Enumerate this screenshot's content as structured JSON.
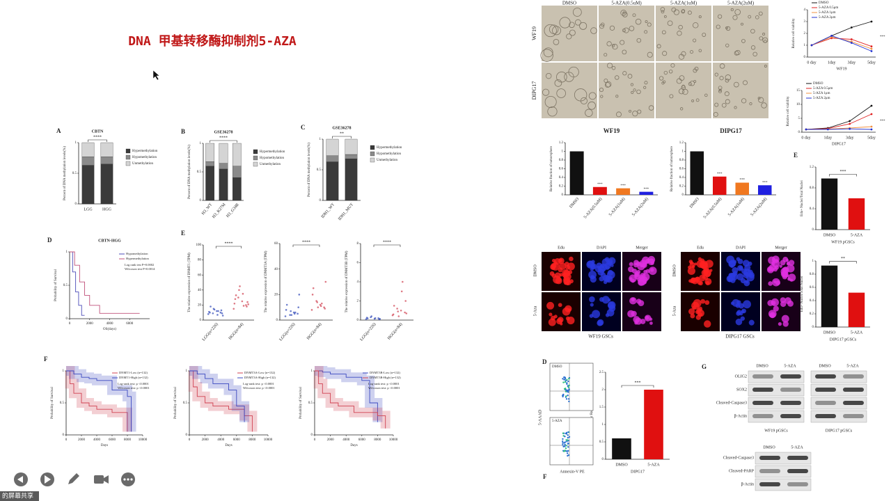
{
  "slide": {
    "title": "DNA 甲基转移酶抑制剂5-AZA",
    "footer": "的屏幕共享"
  },
  "chart_data": [
    {
      "type": "stacked_bar",
      "panel": "A",
      "title": "CBTN",
      "annotation": "****",
      "y_label": "Percent of DNA methylation levels(%)",
      "categories": [
        "LGG",
        "HGG"
      ],
      "ylim": [
        0,
        1
      ],
      "yticks": [
        0,
        0.5,
        1
      ],
      "series": [
        {
          "name": "Hypermethylation",
          "color": "#3a3a3a",
          "values": [
            0.63,
            0.65
          ]
        },
        {
          "name": "Hypomethylation",
          "color": "#8a8a8a",
          "values": [
            0.14,
            0.12
          ]
        },
        {
          "name": "Unmethylation",
          "color": "#d4d4d4",
          "values": [
            0.23,
            0.23
          ]
        }
      ]
    },
    {
      "type": "stacked_bar",
      "panel": "B",
      "title": "GSE36278",
      "annotation": "****",
      "y_label": "Percent of DNA methylation levels(%)",
      "categories": [
        "H3_WT",
        "H3_K27M",
        "H3_G34R"
      ],
      "ylim": [
        0,
        1
      ],
      "yticks": [
        0,
        0.5,
        1
      ],
      "series": [
        {
          "name": "Hypermethylation",
          "color": "#3a3a3a",
          "values": [
            0.6,
            0.55,
            0.4
          ]
        },
        {
          "name": "Hypomethylation",
          "color": "#8a8a8a",
          "values": [
            0.08,
            0.1,
            0.2
          ]
        },
        {
          "name": "Unmethylation",
          "color": "#d4d4d4",
          "values": [
            0.32,
            0.35,
            0.4
          ]
        }
      ]
    },
    {
      "type": "stacked_bar",
      "panel": "C",
      "title": "GSE36278",
      "annotation": "**",
      "y_label": "Percent of DNA methylation levels(%)",
      "categories": [
        "IDH1_WT",
        "IDH1_MUT"
      ],
      "ylim": [
        0,
        1
      ],
      "yticks": [
        0,
        0.5,
        1
      ],
      "series": [
        {
          "name": "Hypermethylation",
          "color": "#3a3a3a",
          "values": [
            0.63,
            0.68
          ]
        },
        {
          "name": "Hypomethylation",
          "color": "#8a8a8a",
          "values": [
            0.1,
            0.07
          ]
        },
        {
          "name": "Unmethylation",
          "color": "#d4d4d4",
          "values": [
            0.27,
            0.25
          ]
        }
      ]
    },
    {
      "type": "step",
      "panel": "D",
      "title": "CBTN-HGG",
      "x_label": "OS(days)",
      "y_label": "Probability of Survival",
      "xlim": [
        0,
        8000
      ],
      "xticks": [
        0,
        2000,
        4000,
        6000
      ],
      "ylim": [
        0,
        1
      ],
      "yticks": [
        0,
        0.5,
        1
      ],
      "annotations": [
        "Log rank test P=0.0002",
        "Wilcoxon test P=0.0014"
      ],
      "series": [
        {
          "name": "Hypomethylation",
          "color": "#4a4ab8",
          "x": [
            0,
            300,
            600,
            900,
            1200,
            1500
          ],
          "values": [
            1,
            0.7,
            0.4,
            0.2,
            0.05,
            0.05
          ]
        },
        {
          "name": "Hypermethylation",
          "color": "#c0507a",
          "x": [
            0,
            500,
            1000,
            1500,
            2000,
            3000,
            7000
          ],
          "values": [
            1,
            0.8,
            0.55,
            0.35,
            0.2,
            0.08,
            0.08
          ]
        }
      ]
    },
    {
      "type": "dot",
      "panel": "E",
      "annotation": "****",
      "y_label": "The relative expression of DNMT1 (TPM)",
      "categories": [
        "LGG(n=226)",
        "HGG(n=84)"
      ],
      "colors": [
        "#3048b8",
        "#d04050"
      ],
      "ylim": [
        0,
        100
      ],
      "yticks": [
        0,
        20,
        40,
        60,
        80,
        100
      ],
      "points": [
        [
          8,
          10,
          12,
          9,
          11,
          13,
          7,
          15,
          10,
          9,
          12,
          14,
          18,
          6
        ],
        [
          15,
          20,
          25,
          30,
          22,
          18,
          35,
          40,
          28,
          24,
          19,
          45,
          33,
          21
        ]
      ]
    },
    {
      "type": "dot",
      "annotation": "****",
      "y_label": "The relative expression of DNMT3A (TPM)",
      "categories": [
        "LGG(n=226)",
        "HGG(n=84)"
      ],
      "colors": [
        "#3048b8",
        "#d04050"
      ],
      "ylim": [
        0,
        60
      ],
      "yticks": [
        0,
        20,
        40,
        60
      ],
      "points": [
        [
          3,
          5,
          6,
          4,
          8,
          10,
          5,
          7,
          12,
          20,
          6,
          4
        ],
        [
          8,
          10,
          12,
          15,
          20,
          9,
          11,
          14,
          25,
          30,
          13,
          10
        ]
      ]
    },
    {
      "type": "dot",
      "annotation": "****",
      "y_label": "The relative expression of DNMT3B (TPM)",
      "categories": [
        "LGG(n=226)",
        "HGG(n=84)"
      ],
      "colors": [
        "#3048b8",
        "#d04050"
      ],
      "ylim": [
        0,
        8
      ],
      "yticks": [
        0,
        2,
        4,
        6,
        8
      ],
      "points": [
        [
          0.1,
          0.2,
          0.15,
          0.3,
          0.25,
          0.1,
          0.2,
          0.4,
          0.18,
          0.12
        ],
        [
          0.5,
          0.8,
          1,
          1.2,
          0.6,
          2,
          3,
          0.9,
          1.5,
          0.7,
          4,
          0.4
        ]
      ]
    },
    {
      "type": "step",
      "panel": "F",
      "confidence_band": true,
      "x_label": "Days",
      "y_label": "Probability of Survival",
      "xlim": [
        0,
        10000
      ],
      "xticks": [
        0,
        2000,
        4000,
        6000,
        8000,
        10000
      ],
      "ylim": [
        0,
        1
      ],
      "yticks": [
        0,
        0.5,
        1
      ],
      "annotations": [
        "Log-rank test: p <0.0001",
        "Wilcoxon test: p <0.0001"
      ],
      "series": [
        {
          "name": "DNMT1-Low (n=132)",
          "color": "#d04050",
          "x": [
            0,
            500,
            1000,
            2000,
            3000,
            4000,
            6000,
            8000
          ],
          "values": [
            1,
            0.8,
            0.65,
            0.5,
            0.45,
            0.4,
            0.35,
            0.05
          ]
        },
        {
          "name": "DNMT1-High (n=132)",
          "color": "#3a48c0",
          "x": [
            0,
            1000,
            2000,
            3000,
            4000,
            6000,
            8000,
            8500
          ],
          "values": [
            1,
            0.95,
            0.9,
            0.88,
            0.85,
            0.7,
            0.6,
            0.05
          ]
        }
      ]
    },
    {
      "type": "step",
      "confidence_band": true,
      "x_label": "Days",
      "y_label": "Probability of Survival",
      "xlim": [
        0,
        10000
      ],
      "xticks": [
        0,
        2000,
        4000,
        6000,
        8000,
        10000
      ],
      "ylim": [
        0,
        1
      ],
      "yticks": [
        0,
        0.5,
        1
      ],
      "annotations": [
        "Log-rank test: p <0.0001",
        "Wilcoxon test: p <0.0001"
      ],
      "series": [
        {
          "name": "DNMT3A-Low (n=132)",
          "color": "#d04050",
          "x": [
            0,
            500,
            1000,
            2000,
            3000,
            5000,
            7000,
            8000
          ],
          "values": [
            1,
            0.75,
            0.6,
            0.5,
            0.45,
            0.4,
            0.3,
            0.05
          ]
        },
        {
          "name": "DNMT3A-High (n=132)",
          "color": "#3a48c0",
          "x": [
            0,
            1000,
            2000,
            3000,
            5000,
            6000,
            7000
          ],
          "values": [
            1,
            0.95,
            0.88,
            0.8,
            0.7,
            0.45,
            0.2
          ]
        }
      ]
    },
    {
      "type": "step",
      "confidence_band": true,
      "x_label": "Days",
      "y_label": "Probability of Survival",
      "xlim": [
        0,
        10000
      ],
      "xticks": [
        0,
        2000,
        4000,
        6000,
        8000,
        10000
      ],
      "ylim": [
        0,
        1
      ],
      "yticks": [
        0,
        0.5,
        1
      ],
      "annotations": [
        "Log-rank test: p <0.0001",
        "Wilcoxon test: p <0.0001"
      ],
      "series": [
        {
          "name": "DNMT3B-Low (n=132)",
          "color": "#3a48c0",
          "x": [
            0,
            1000,
            2000,
            4000,
            6000,
            7000,
            8000
          ],
          "values": [
            1,
            0.98,
            0.95,
            0.9,
            0.85,
            0.5,
            0.2
          ]
        },
        {
          "name": "DNMT3B-High (n=132)",
          "color": "#d04050",
          "x": [
            0,
            500,
            1000,
            2000,
            3000,
            5000,
            8000,
            9000
          ],
          "values": [
            1,
            0.8,
            0.65,
            0.5,
            0.45,
            0.35,
            0.3,
            0.1
          ]
        }
      ]
    },
    {
      "type": "bar",
      "title": "WF19",
      "y_label": "Relative fraction of tumorsphere",
      "categories": [
        "DMSO",
        "5-AZA(0.5uM)",
        "5-AZA(1uM)",
        "5-AZA(2uM)"
      ],
      "colors": [
        "#111111",
        "#e01010",
        "#f07820",
        "#2020e0"
      ],
      "values": [
        1,
        0.18,
        0.15,
        0.07
      ],
      "annotations": [
        null,
        "***",
        "***",
        "***"
      ],
      "ylim": [
        0,
        1.2
      ],
      "yticks": [
        0,
        0.2,
        0.4,
        0.6,
        0.8,
        1,
        1.2
      ]
    },
    {
      "type": "bar",
      "title": "DIPG17",
      "y_label": "Relative fraction of tumorsphere",
      "categories": [
        "DMSO",
        "5-AZA(0.5uM)",
        "5-AZA(1uM)",
        "5-AZA(2uM)"
      ],
      "colors": [
        "#111111",
        "#e01010",
        "#f07820",
        "#2020e0"
      ],
      "values": [
        1,
        0.42,
        0.28,
        0.22
      ],
      "annotations": [
        null,
        "***",
        "***",
        "***"
      ],
      "ylim": [
        0,
        1.2
      ],
      "yticks": [
        0,
        0.2,
        0.4,
        0.6,
        0.8,
        1,
        1.2
      ]
    },
    {
      "type": "line",
      "panel": "C",
      "annotation": "***",
      "x_label": "WF19",
      "y_label": "Relative cell viability",
      "categories": [
        "0 day",
        "1day",
        "3day",
        "5day"
      ],
      "ylim": [
        0,
        4
      ],
      "yticks": [
        0,
        1,
        2,
        3,
        4
      ],
      "series": [
        {
          "name": "DMSO",
          "color": "#111111",
          "values": [
            1,
            1.8,
            2.5,
            3
          ]
        },
        {
          "name": "5-AZA 0.5μm",
          "color": "#e02020",
          "values": [
            1,
            1.6,
            1.5,
            0.9
          ]
        },
        {
          "name": "5-AZA 1μm",
          "color": "#f09040",
          "values": [
            1,
            1.7,
            1.3,
            0.7
          ]
        },
        {
          "name": "5-AZA 2μm",
          "color": "#2030d0",
          "values": [
            1,
            1.8,
            1.2,
            0.5
          ]
        }
      ]
    },
    {
      "type": "line",
      "annotation": "***",
      "x_label": "DIPG17",
      "y_label": "Relative cell viability",
      "categories": [
        "0 day",
        "1day",
        "3day",
        "5day"
      ],
      "ylim": [
        0,
        15
      ],
      "yticks": [
        0,
        5,
        10,
        15
      ],
      "series": [
        {
          "name": "DMSO",
          "color": "#111111",
          "values": [
            1,
            1.5,
            4,
            9.5
          ]
        },
        {
          "name": "5-AZA 0.5μm",
          "color": "#e02020",
          "values": [
            1,
            1.3,
            3,
            6.5
          ]
        },
        {
          "name": "5-AZA 1μm",
          "color": "#f09040",
          "values": [
            1,
            1.1,
            1.5,
            2
          ]
        },
        {
          "name": "5-AZA 2μm",
          "color": "#2030d0",
          "values": [
            1,
            1,
            1.2,
            1
          ]
        }
      ]
    },
    {
      "type": "bar",
      "panel": "E",
      "annotation": "***",
      "x_label": "WF19 pGSCs",
      "y_label": "Edu+ Nuclei/Total Nuclei",
      "categories": [
        "DMSO",
        "5-AZA"
      ],
      "colors": [
        "#111111",
        "#e01010"
      ],
      "values": [
        0.98,
        0.6
      ],
      "ylim": [
        0,
        1.2
      ],
      "yticks": [
        0,
        0.4,
        0.8,
        1.2
      ]
    },
    {
      "type": "bar",
      "annotation": "**",
      "x_label": "DIPG17 pGSCs",
      "y_label": "Edu+ Nuclei/Total Nuclei",
      "categories": [
        "DMSO",
        "5-AZA"
      ],
      "colors": [
        "#111111",
        "#e01010"
      ],
      "values": [
        0.93,
        0.52
      ],
      "ylim": [
        0,
        1
      ],
      "yticks": [
        0,
        0.2,
        0.4,
        0.6,
        0.8,
        1
      ]
    },
    {
      "type": "bar",
      "annotation": "***",
      "x_label": "DIPG17",
      "y_label": "Apoptotic Ratio(%)",
      "categories": [
        "DMSO",
        "5-AZA"
      ],
      "colors": [
        "#111111",
        "#e01010"
      ],
      "values": [
        0.6,
        2
      ],
      "ylim": [
        0,
        2.5
      ],
      "yticks": [
        0,
        0.5,
        1,
        1.5,
        2,
        2.5
      ]
    }
  ],
  "micrographs": {
    "columns": [
      "DMSO",
      "5-AZA(0.5uM)",
      "5-AZA(1uM)",
      "5-AZA(2uM)"
    ],
    "rows": [
      "WF19",
      "DIPG17"
    ]
  },
  "fluorescence": [
    {
      "columns": [
        "Edu",
        "DAPI",
        "Merger"
      ],
      "rows": [
        "DMSO",
        "5-Aza"
      ],
      "caption": "WF19 GSCs"
    },
    {
      "columns": [
        "Edu",
        "DAPI",
        "Merger"
      ],
      "rows": [
        "DMSO",
        "5-Aza"
      ],
      "caption": "DIPG17 GSCs"
    }
  ],
  "flow": {
    "panel": "D",
    "bottom_panel": "F",
    "samples": [
      "DMSO",
      "5-AZA"
    ],
    "x_label": "Annexin-V PE",
    "y_label": "5-AAAD"
  },
  "western": {
    "panel": "G",
    "blots": [
      {
        "headers": [
          "DMSO",
          "5-AZA"
        ],
        "rows": [
          "OLIG2",
          "SOX2",
          "Cleaved-Caspase3",
          "β-Actin"
        ],
        "caption": "WF19 pGSCs"
      },
      {
        "headers": [
          "DMSO",
          "5-AZA"
        ],
        "caption": "DIPG17 pGSCs"
      },
      {
        "headers": [
          "DMSO",
          "5-AZA"
        ],
        "rows": [
          "Cleaved-Caspase3",
          "Cleaved-PARP",
          "β-Actin"
        ]
      }
    ]
  }
}
